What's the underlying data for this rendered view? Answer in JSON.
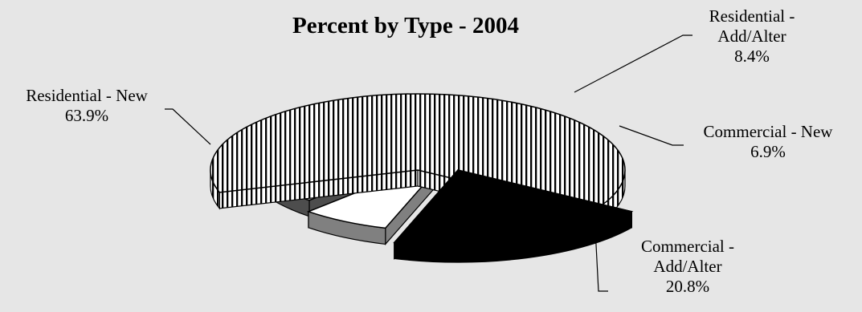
{
  "chart_data": {
    "type": "pie",
    "title": "Percent by Type - 2004",
    "slices": [
      {
        "label": [
          "Residential - New",
          "63.9%"
        ],
        "value": 63.9,
        "fill": "stripes"
      },
      {
        "label": [
          "Residential -",
          "Add/Alter",
          "8.4%"
        ],
        "value": 8.4,
        "fill": "#999999"
      },
      {
        "label": [
          "Commercial - New",
          "6.9%"
        ],
        "value": 6.9,
        "fill": "#ffffff"
      },
      {
        "label": [
          "Commercial -",
          "Add/Alter",
          "20.8%"
        ],
        "value": 20.8,
        "fill": "#000000"
      }
    ],
    "legend": "none",
    "exploded": true,
    "three_d": true
  }
}
